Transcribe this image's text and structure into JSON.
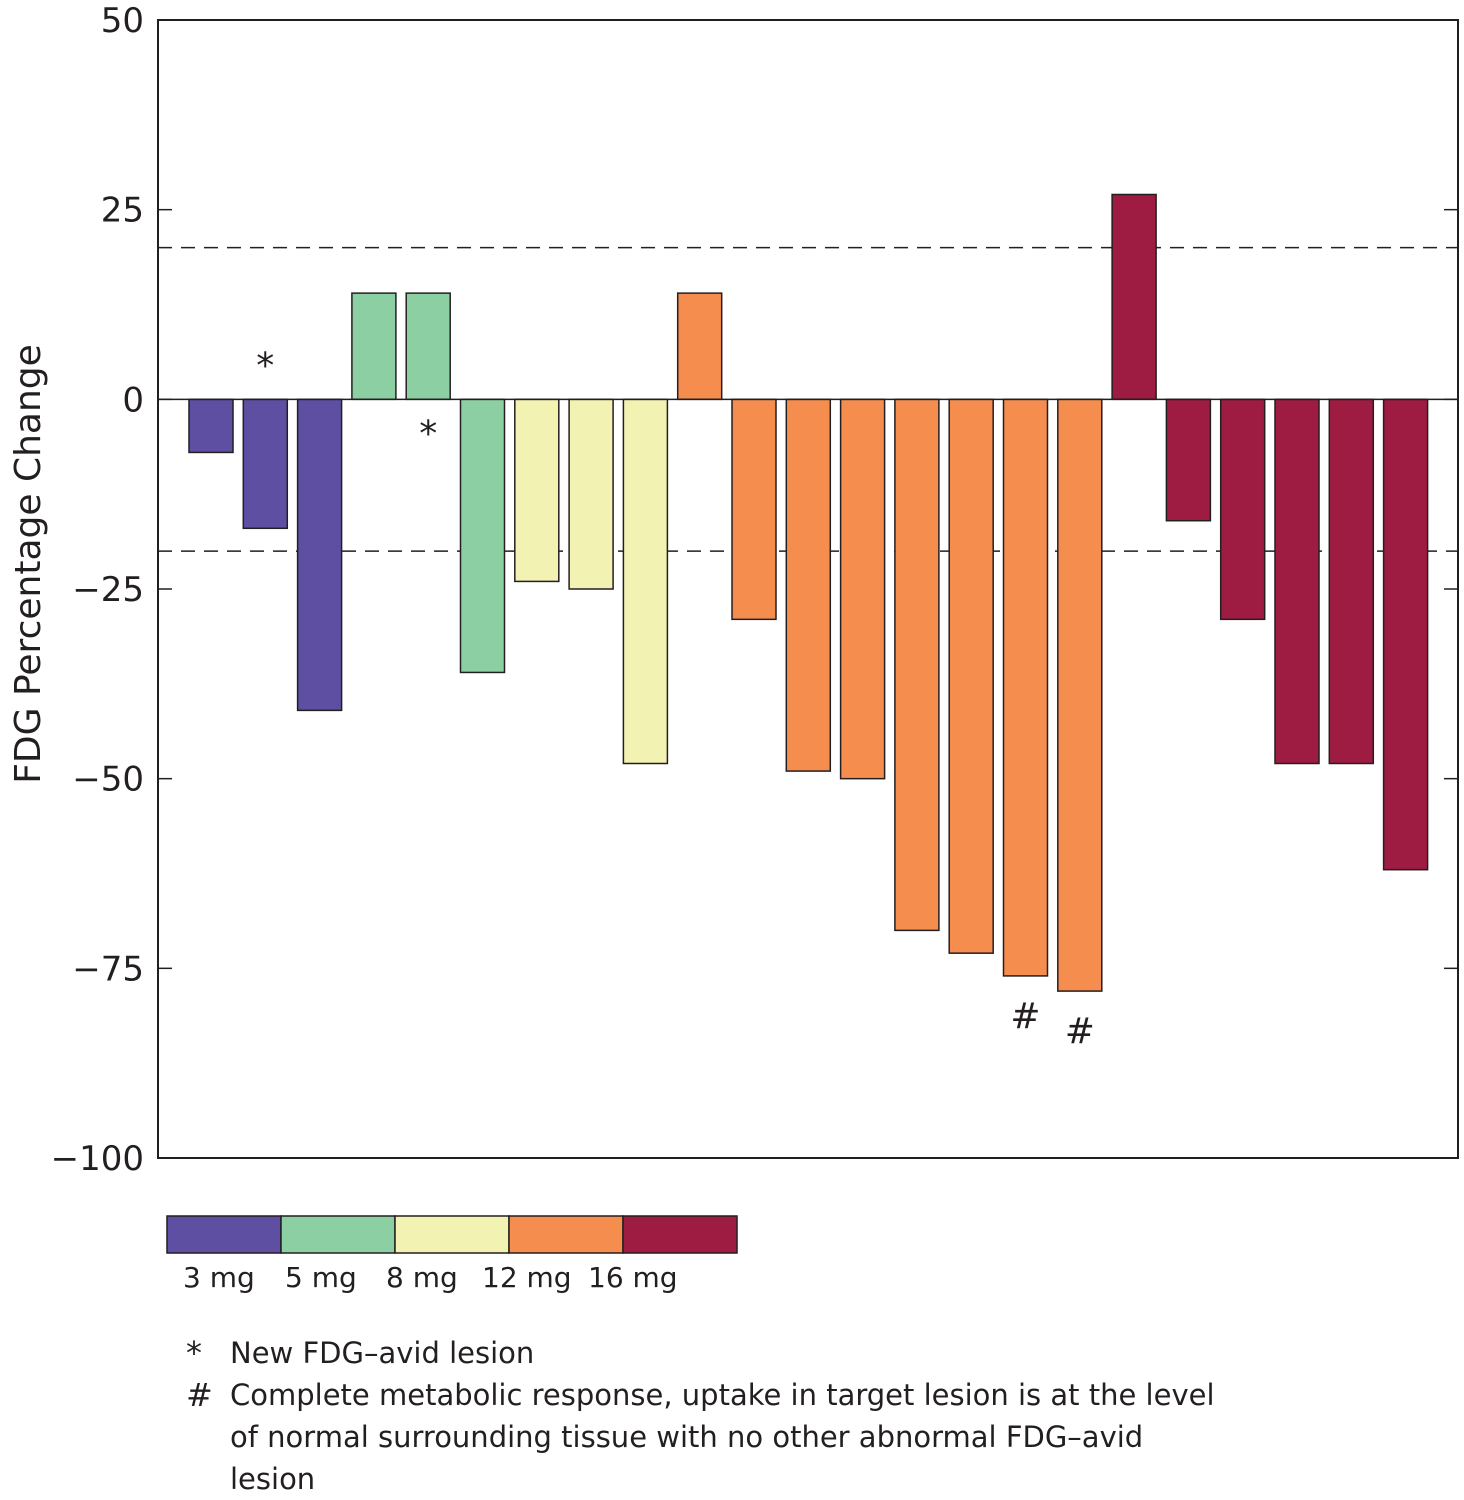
{
  "chart_data": {
    "type": "bar",
    "title": "",
    "xlabel": "",
    "ylabel": "FDG Percentage Change",
    "ylim": [
      -100,
      50
    ],
    "yticks": [
      50,
      25,
      0,
      -25,
      -50,
      -75,
      -100
    ],
    "ytick_labels": [
      "50",
      "25",
      "0",
      "−25",
      "−50",
      "−75",
      "−100"
    ],
    "reference_lines": [
      20,
      -20
    ],
    "grid": false,
    "dose_groups": [
      {
        "label": "3 mg",
        "color": "#5e4fa2"
      },
      {
        "label": "5 mg",
        "color": "#8ccfa2"
      },
      {
        "label": "8 mg",
        "color": "#f2f2b3"
      },
      {
        "label": "12 mg",
        "color": "#f58d4e"
      },
      {
        "label": "16 mg",
        "color": "#9e1b42"
      }
    ],
    "bars": [
      {
        "value": -7,
        "group": 0,
        "marker": ""
      },
      {
        "value": -17,
        "group": 0,
        "marker": "*",
        "marker_position": "above"
      },
      {
        "value": -41,
        "group": 0,
        "marker": ""
      },
      {
        "value": 14,
        "group": 1,
        "marker": ""
      },
      {
        "value": 14,
        "group": 1,
        "marker": "*",
        "marker_position": "below"
      },
      {
        "value": -36,
        "group": 1,
        "marker": ""
      },
      {
        "value": -24,
        "group": 2,
        "marker": ""
      },
      {
        "value": -25,
        "group": 2,
        "marker": ""
      },
      {
        "value": -48,
        "group": 2,
        "marker": ""
      },
      {
        "value": 14,
        "group": 3,
        "marker": ""
      },
      {
        "value": -29,
        "group": 3,
        "marker": ""
      },
      {
        "value": -49,
        "group": 3,
        "marker": ""
      },
      {
        "value": -50,
        "group": 3,
        "marker": ""
      },
      {
        "value": -70,
        "group": 3,
        "marker": ""
      },
      {
        "value": -73,
        "group": 3,
        "marker": ""
      },
      {
        "value": -76,
        "group": 3,
        "marker": "#",
        "marker_position": "below"
      },
      {
        "value": -78,
        "group": 3,
        "marker": "#",
        "marker_position": "below"
      },
      {
        "value": 27,
        "group": 4,
        "marker": ""
      },
      {
        "value": -16,
        "group": 4,
        "marker": ""
      },
      {
        "value": -29,
        "group": 4,
        "marker": ""
      },
      {
        "value": -48,
        "group": 4,
        "marker": ""
      },
      {
        "value": -48,
        "group": 4,
        "marker": ""
      },
      {
        "value": -62,
        "group": 4,
        "marker": ""
      }
    ]
  },
  "notes": [
    {
      "symbol": "*",
      "text": "New FDG–avid lesion"
    },
    {
      "symbol": "#",
      "text": "Complete metabolic response, uptake in target lesion is at the level of normal surrounding tissue with no other abnormal FDG–avid lesion"
    }
  ]
}
